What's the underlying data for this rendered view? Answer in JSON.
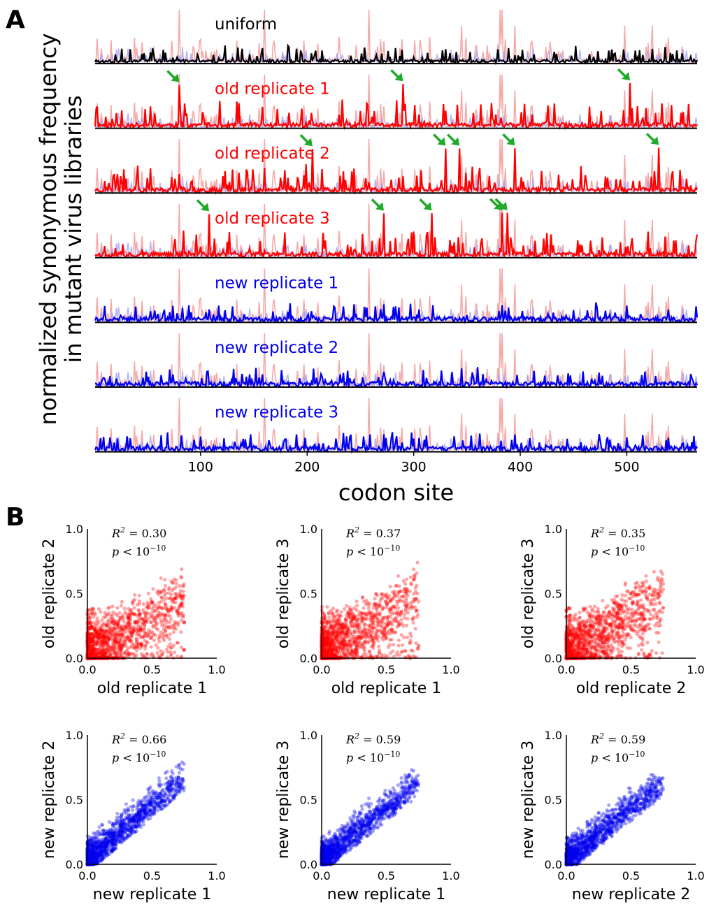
{
  "panel_labels": {
    "a": "A",
    "b": "B"
  },
  "colors": {
    "old": "#ff0000",
    "new": "#0000ee",
    "uniform": "#000000",
    "old_bg": "#f4a0a0",
    "new_bg": "#9c9cf2",
    "arrow": "#1faa2a",
    "axis": "#000000"
  },
  "chart_data": [
    {
      "type": "line",
      "title": "normalized synonymous frequency in mutant virus libraries vs codon site",
      "ylabel_lines": [
        "normalized synonymous frequency",
        "in mutant virus libraries"
      ],
      "xlabel": "codon site",
      "xlim": [
        1,
        566
      ],
      "xticks": [
        100,
        200,
        300,
        400,
        500
      ],
      "tracks": [
        {
          "name": "uniform",
          "color_key": "uniform",
          "seed": 3,
          "arrows": []
        },
        {
          "name": "old replicate 1",
          "color_key": "old",
          "seed": 11,
          "arrows": [
            80,
            290,
            503
          ]
        },
        {
          "name": "old replicate 2",
          "color_key": "old",
          "seed": 23,
          "arrows": [
            205,
            330,
            343,
            395,
            530
          ]
        },
        {
          "name": "old replicate 3",
          "color_key": "old",
          "seed": 37,
          "arrows": [
            108,
            272,
            317,
            383,
            388
          ]
        },
        {
          "name": "new replicate 1",
          "color_key": "new",
          "seed": 41,
          "arrows": []
        },
        {
          "name": "new replicate 2",
          "color_key": "new",
          "seed": 53,
          "arrows": []
        },
        {
          "name": "new replicate 3",
          "color_key": "new",
          "seed": 67,
          "arrows": []
        }
      ]
    },
    {
      "type": "scatter",
      "xlim": [
        0,
        1.0
      ],
      "ylim": [
        0,
        1.0
      ],
      "ticks": [
        "0.0",
        "0.5",
        "1.0"
      ],
      "plots": [
        {
          "xlabel": "old replicate 1",
          "ylabel": "old replicate 2",
          "r2": "0.30",
          "p": "10",
          "color_key": "old",
          "slope": 0.55,
          "seed": 5
        },
        {
          "xlabel": "old replicate 1",
          "ylabel": "old replicate 3",
          "r2": "0.37",
          "p": "10",
          "color_key": "old",
          "slope": 0.6,
          "seed": 9
        },
        {
          "xlabel": "old replicate 2",
          "ylabel": "old replicate 3",
          "r2": "0.35",
          "p": "10",
          "color_key": "old",
          "slope": 0.6,
          "seed": 13
        },
        {
          "xlabel": "new replicate 1",
          "ylabel": "new replicate 2",
          "r2": "0.66",
          "p": "10",
          "color_key": "new",
          "slope": 0.85,
          "seed": 17
        },
        {
          "xlabel": "new replicate 1",
          "ylabel": "new replicate 3",
          "r2": "0.59",
          "p": "10",
          "color_key": "new",
          "slope": 0.8,
          "seed": 19
        },
        {
          "xlabel": "new replicate 2",
          "ylabel": "new replicate 3",
          "r2": "0.59",
          "p": "10",
          "color_key": "new",
          "slope": 0.8,
          "seed": 29
        }
      ]
    }
  ]
}
